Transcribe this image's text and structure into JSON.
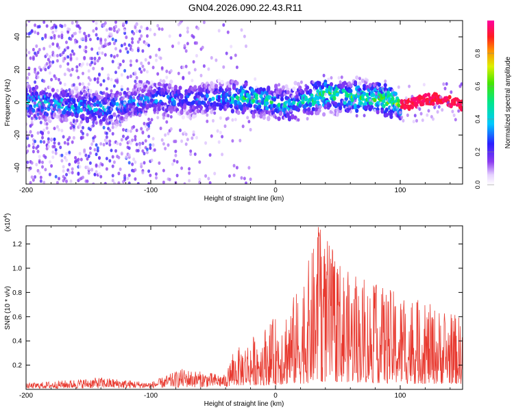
{
  "page": {
    "title": "GN04.2026.090.22.43.R11"
  },
  "chart_data": [
    {
      "type": "heatmap",
      "xlabel": "Height of straight line (km)",
      "ylabel": "Frequency (Hz)",
      "xlim": [
        -200,
        150
      ],
      "ylim": [
        -50,
        50
      ],
      "xticks": [
        -200,
        -100,
        0,
        100
      ],
      "yticks": [
        -40,
        -20,
        0,
        20,
        40
      ],
      "colorbar": {
        "label": "Normalized spectral amplitude",
        "range": [
          0,
          1
        ],
        "ticks": [
          "0.0",
          "0.2",
          "0.4",
          "0.6",
          "0.8"
        ]
      },
      "description_points": [
        {
          "x": -190,
          "freq_center": 0,
          "amp": 0.45
        },
        {
          "x": -140,
          "freq_center": -4,
          "amp": 0.4
        },
        {
          "x": -100,
          "freq_center": 2,
          "amp": 0.35
        },
        {
          "x": -50,
          "freq_center": 2,
          "amp": 0.35
        },
        {
          "x": -20,
          "freq_center": 3,
          "amp": 0.55
        },
        {
          "x": 10,
          "freq_center": -2,
          "amp": 0.45
        },
        {
          "x": 40,
          "freq_center": 5,
          "amp": 0.6
        },
        {
          "x": 80,
          "freq_center": 2,
          "amp": 0.6
        },
        {
          "x": 110,
          "freq_center": 0,
          "amp": 0.95
        },
        {
          "x": 150,
          "freq_center": 0,
          "amp": 0.95
        }
      ]
    },
    {
      "type": "line",
      "xlabel": "Height of straight line (km)",
      "ylabel": "SNR (10 * v/v)",
      "yscale_label": "(x10",
      "yscale_exp": "4",
      "ylabel_suffix": ")",
      "xlim": [
        -200,
        150
      ],
      "ylim": [
        0,
        1.35
      ],
      "xticks": [
        -200,
        -100,
        0,
        100
      ],
      "yticks": [
        "0.2",
        "0.4",
        "0.6",
        "0.8",
        "1.0",
        "1.2"
      ],
      "line_color": "#e83a30",
      "envelope": [
        {
          "x": -200,
          "base": 0.02,
          "peak": 0.05
        },
        {
          "x": -140,
          "base": 0.03,
          "peak": 0.1
        },
        {
          "x": -100,
          "base": 0.03,
          "peak": 0.06
        },
        {
          "x": -75,
          "base": 0.05,
          "peak": 0.17
        },
        {
          "x": -40,
          "base": 0.06,
          "peak": 0.12
        },
        {
          "x": -35,
          "base": 0.1,
          "peak": 0.3
        },
        {
          "x": 0,
          "base": 0.12,
          "peak": 0.6
        },
        {
          "x": 20,
          "base": 0.15,
          "peak": 0.85
        },
        {
          "x": 35,
          "base": 0.2,
          "peak": 1.35
        },
        {
          "x": 60,
          "base": 0.2,
          "peak": 0.95
        },
        {
          "x": 100,
          "base": 0.15,
          "peak": 0.8
        },
        {
          "x": 150,
          "base": 0.15,
          "peak": 0.6
        }
      ]
    }
  ]
}
